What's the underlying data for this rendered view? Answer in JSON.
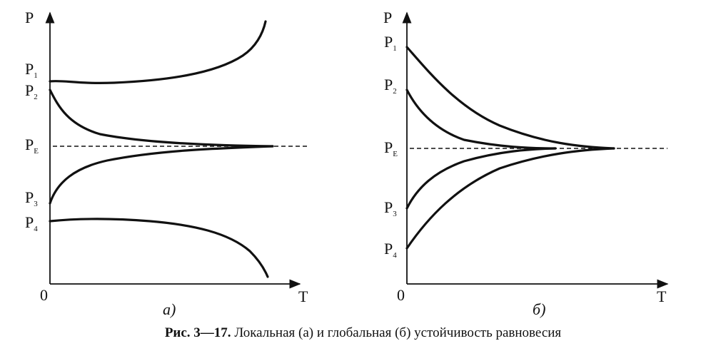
{
  "panel_a": {
    "y_axis": "P",
    "x_axis": "T",
    "origin": "0",
    "panel_label": "a)",
    "levels": [
      {
        "main": "P",
        "sub": "1"
      },
      {
        "main": "P",
        "sub": "2"
      },
      {
        "main": "P",
        "sub": "E"
      },
      {
        "main": "P",
        "sub": "3"
      },
      {
        "main": "P",
        "sub": "4"
      }
    ]
  },
  "panel_b": {
    "y_axis": "P",
    "x_axis": "T",
    "origin": "0",
    "panel_label": "б)",
    "levels": [
      {
        "main": "P",
        "sub": "1"
      },
      {
        "main": "P",
        "sub": "2"
      },
      {
        "main": "P",
        "sub": "E"
      },
      {
        "main": "P",
        "sub": "3"
      },
      {
        "main": "P",
        "sub": "4"
      }
    ]
  },
  "caption": {
    "number": "Рис. 3—17.",
    "text": "Локальная (а) и глобальная (б) устойчивость равновесия"
  }
}
